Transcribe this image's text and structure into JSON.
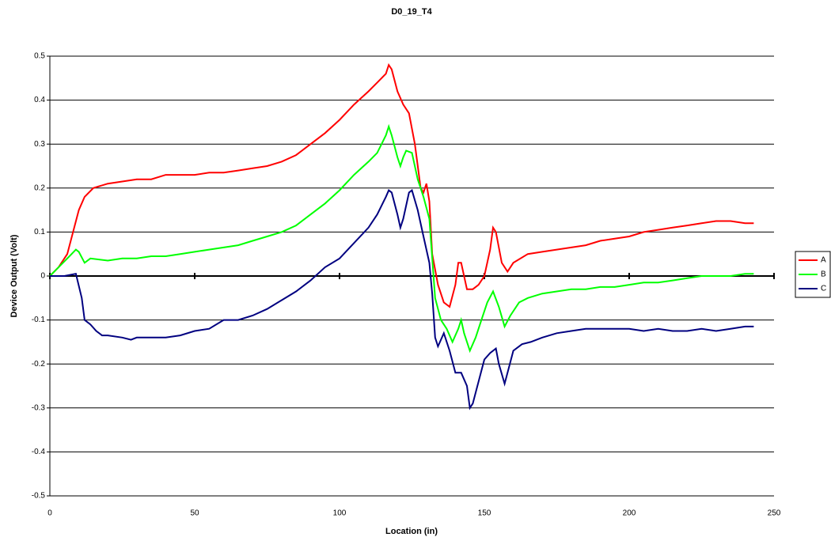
{
  "chart_data": {
    "type": "line",
    "title": "D0_19_T4",
    "x_label": "Location (in)",
    "y_label": "Device Output (Volt)",
    "xlim": [
      0,
      250
    ],
    "xticks": [
      0,
      50,
      100,
      150,
      200,
      250
    ],
    "ylim": [
      -0.5,
      0.5
    ],
    "yticks": [
      0.5,
      0.4,
      0.3,
      0.2,
      0.1,
      0,
      -0.1,
      -0.2,
      -0.3,
      -0.4,
      -0.5
    ],
    "grid": true,
    "legend": "right",
    "series": [
      {
        "name": "A",
        "color": "#ff0000",
        "x": [
          0,
          3,
          6,
          8,
          10,
          12,
          15,
          20,
          25,
          30,
          35,
          40,
          45,
          50,
          55,
          60,
          65,
          70,
          75,
          80,
          85,
          90,
          95,
          100,
          105,
          110,
          113,
          116,
          117,
          118,
          120,
          122,
          124,
          126,
          128,
          129,
          130,
          131,
          132,
          134,
          136,
          138,
          140,
          141,
          142,
          144,
          146,
          148,
          150,
          152,
          153,
          154,
          156,
          158,
          160,
          165,
          170,
          175,
          180,
          185,
          190,
          195,
          200,
          205,
          210,
          215,
          220,
          225,
          230,
          235,
          240,
          243
        ],
        "values": [
          0,
          0.02,
          0.05,
          0.1,
          0.15,
          0.18,
          0.2,
          0.21,
          0.215,
          0.22,
          0.22,
          0.23,
          0.23,
          0.23,
          0.235,
          0.235,
          0.24,
          0.245,
          0.25,
          0.26,
          0.275,
          0.3,
          0.325,
          0.355,
          0.39,
          0.42,
          0.44,
          0.46,
          0.48,
          0.47,
          0.42,
          0.39,
          0.37,
          0.3,
          0.2,
          0.19,
          0.21,
          0.17,
          0.05,
          -0.02,
          -0.06,
          -0.07,
          -0.02,
          0.03,
          0.03,
          -0.03,
          -0.03,
          -0.02,
          0,
          0.06,
          0.11,
          0.1,
          0.03,
          0.01,
          0.03,
          0.05,
          0.055,
          0.06,
          0.065,
          0.07,
          0.08,
          0.085,
          0.09,
          0.1,
          0.105,
          0.11,
          0.115,
          0.12,
          0.125,
          0.125,
          0.12,
          0.12
        ]
      },
      {
        "name": "B",
        "color": "#00ff00",
        "x": [
          0,
          3,
          6,
          9,
          10,
          12,
          14,
          20,
          25,
          30,
          35,
          40,
          45,
          50,
          55,
          60,
          65,
          70,
          75,
          80,
          85,
          90,
          95,
          100,
          105,
          110,
          113,
          116,
          117,
          118,
          120,
          121,
          122,
          123,
          125,
          127,
          129,
          131,
          133,
          135,
          137,
          139,
          141,
          142,
          143,
          145,
          147,
          149,
          151,
          153,
          155,
          157,
          159,
          162,
          165,
          170,
          175,
          180,
          185,
          190,
          195,
          200,
          205,
          210,
          215,
          220,
          225,
          230,
          235,
          240,
          243
        ],
        "values": [
          0,
          0.02,
          0.04,
          0.06,
          0.055,
          0.03,
          0.04,
          0.035,
          0.04,
          0.04,
          0.045,
          0.045,
          0.05,
          0.055,
          0.06,
          0.065,
          0.07,
          0.08,
          0.09,
          0.1,
          0.115,
          0.14,
          0.165,
          0.195,
          0.23,
          0.26,
          0.28,
          0.32,
          0.34,
          0.32,
          0.27,
          0.25,
          0.27,
          0.285,
          0.28,
          0.22,
          0.18,
          0.13,
          -0.05,
          -0.1,
          -0.12,
          -0.15,
          -0.12,
          -0.1,
          -0.13,
          -0.17,
          -0.14,
          -0.1,
          -0.06,
          -0.035,
          -0.07,
          -0.115,
          -0.09,
          -0.06,
          -0.05,
          -0.04,
          -0.035,
          -0.03,
          -0.03,
          -0.025,
          -0.025,
          -0.02,
          -0.015,
          -0.015,
          -0.01,
          -0.005,
          0,
          0,
          0,
          0.005,
          0.005
        ]
      },
      {
        "name": "C",
        "color": "#000080",
        "x": [
          0,
          5,
          9,
          11,
          12,
          14,
          16,
          18,
          20,
          25,
          28,
          30,
          35,
          40,
          45,
          50,
          55,
          60,
          65,
          70,
          75,
          80,
          85,
          90,
          95,
          100,
          105,
          110,
          113,
          116,
          117,
          118,
          120,
          121,
          122,
          124,
          125,
          127,
          129,
          131,
          132,
          133,
          134,
          136,
          138,
          140,
          142,
          144,
          145,
          146,
          148,
          150,
          152,
          154,
          155,
          157,
          158,
          160,
          163,
          166,
          170,
          175,
          180,
          185,
          190,
          195,
          200,
          205,
          210,
          215,
          220,
          225,
          230,
          235,
          240,
          243
        ],
        "values": [
          0,
          0,
          0.005,
          -0.05,
          -0.1,
          -0.11,
          -0.125,
          -0.135,
          -0.135,
          -0.14,
          -0.145,
          -0.14,
          -0.14,
          -0.14,
          -0.135,
          -0.125,
          -0.12,
          -0.1,
          -0.1,
          -0.09,
          -0.075,
          -0.055,
          -0.035,
          -0.01,
          0.02,
          0.04,
          0.075,
          0.11,
          0.14,
          0.18,
          0.195,
          0.19,
          0.14,
          0.11,
          0.13,
          0.19,
          0.195,
          0.15,
          0.09,
          0.03,
          -0.04,
          -0.14,
          -0.16,
          -0.13,
          -0.17,
          -0.22,
          -0.22,
          -0.25,
          -0.3,
          -0.29,
          -0.24,
          -0.19,
          -0.175,
          -0.165,
          -0.2,
          -0.245,
          -0.22,
          -0.17,
          -0.155,
          -0.15,
          -0.14,
          -0.13,
          -0.125,
          -0.12,
          -0.12,
          -0.12,
          -0.12,
          -0.125,
          -0.12,
          -0.125,
          -0.125,
          -0.12,
          -0.125,
          -0.12,
          -0.115,
          -0.115
        ]
      }
    ]
  }
}
